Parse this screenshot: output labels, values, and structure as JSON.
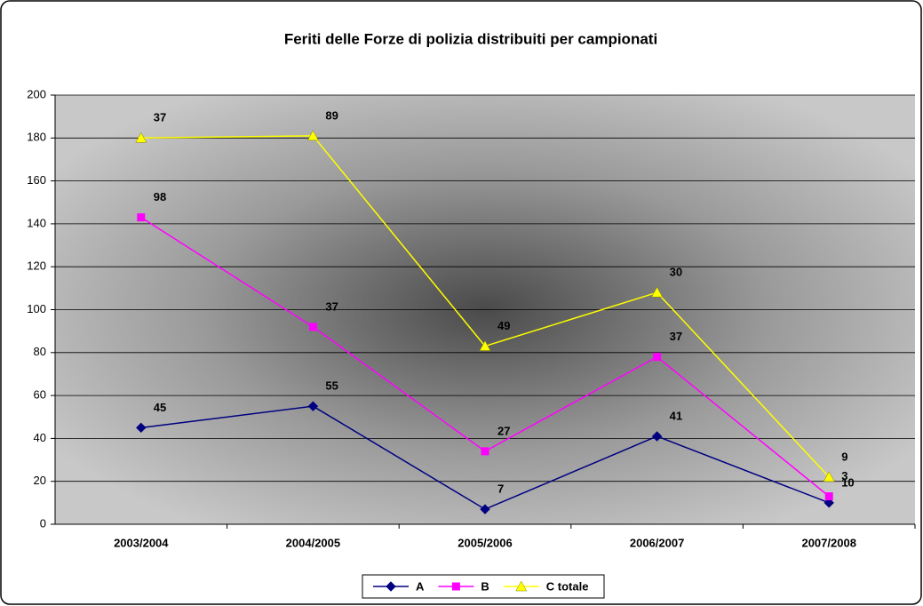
{
  "chart_data": {
    "type": "line",
    "stacked": true,
    "title": "Feriti delle Forze di polizia distribuiti per campionati",
    "categories": [
      "2003/2004",
      "2004/2005",
      "2005/2006",
      "2006/2007",
      "2007/2008"
    ],
    "series": [
      {
        "name": "A",
        "color": "#000080",
        "marker": "diamond",
        "values": [
          45,
          55,
          7,
          41,
          10
        ]
      },
      {
        "name": "B",
        "color": "#ff00ff",
        "marker": "square",
        "values": [
          98,
          37,
          27,
          37,
          3
        ]
      },
      {
        "name": "C totale",
        "color": "#ffff00",
        "marker": "triangle",
        "values": [
          37,
          89,
          49,
          30,
          9
        ]
      }
    ],
    "ylim": [
      0,
      200
    ],
    "yticks": [
      0,
      20,
      40,
      60,
      80,
      100,
      120,
      140,
      160,
      180,
      200
    ],
    "grid": true,
    "legend": "bottom"
  }
}
